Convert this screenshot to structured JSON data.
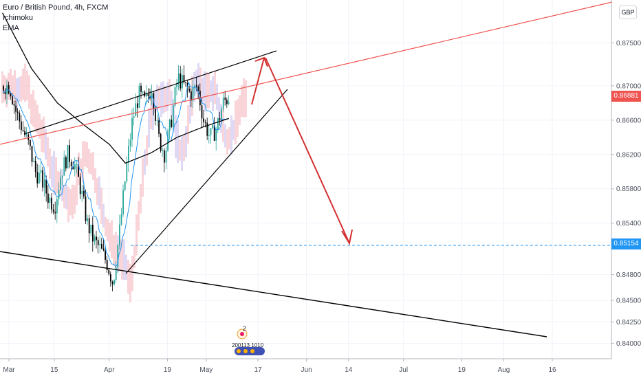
{
  "legend": {
    "symbol": "Euro / British Pound, 4h, FXCM",
    "indicator1": "Ichimoku",
    "indicator2": "EMA"
  },
  "currency_button": "GBP",
  "current_price_tag": {
    "label": "0.86881",
    "color": "#ef5350"
  },
  "target_price_tag": {
    "label": "0.85154",
    "color": "#2196f3"
  },
  "idea_badge": {
    "count": "2",
    "text": "200113 1010"
  },
  "chart_data": {
    "type": "line",
    "title": "Euro / British Pound, 4h, FXCM",
    "ylim": [
      0.8382,
      0.88
    ],
    "y_ticks": [
      "0.87500",
      "0.87000",
      "0.86600",
      "0.86200",
      "0.85800",
      "0.85400",
      "0.84800",
      "0.84500",
      "0.84250",
      "0.84000"
    ],
    "y_tick_values": [
      0.875,
      0.87,
      0.866,
      0.862,
      0.858,
      0.854,
      0.848,
      0.845,
      0.8425,
      0.84
    ],
    "x_ticks": [
      "Mar",
      "15",
      "Apr",
      "19",
      "May",
      "17",
      "Jun",
      "14",
      "Jul",
      "19",
      "Aug",
      "16"
    ],
    "x_tick_dates": [
      "2020-03-01",
      "2020-03-15",
      "2020-04-01",
      "2020-04-19",
      "2020-05-01",
      "2020-05-17",
      "2020-06-01",
      "2020-06-14",
      "2020-07-01",
      "2020-07-19",
      "2020-08-01",
      "2020-08-16"
    ],
    "colors": {
      "up_candle": "#26a69a",
      "down_candle": "#000000",
      "ema": "#000000",
      "tenkan": "#2196f3",
      "kumo_bear": "#f8c9d0",
      "kumo_bull": "#d8d0f2",
      "trendline": "#000000",
      "resistance": "#ef5350",
      "arrow": "#d32f2f",
      "target": "#2196f3"
    },
    "series": [
      {
        "name": "EUR/GBP close",
        "x": [
          "2020-03-01",
          "2020-03-03",
          "2020-03-05",
          "2020-03-07",
          "2020-03-09",
          "2020-03-11",
          "2020-03-13",
          "2020-03-15",
          "2020-03-17",
          "2020-03-19",
          "2020-03-21",
          "2020-03-23",
          "2020-03-25",
          "2020-03-27",
          "2020-03-29",
          "2020-03-31",
          "2020-04-02",
          "2020-04-04",
          "2020-04-06",
          "2020-04-08",
          "2020-04-10",
          "2020-04-12",
          "2020-04-14",
          "2020-04-16",
          "2020-04-18",
          "2020-04-20",
          "2020-04-22",
          "2020-04-24",
          "2020-04-26",
          "2020-04-28",
          "2020-04-30",
          "2020-05-02",
          "2020-05-04",
          "2020-05-06",
          "2020-05-08"
        ],
        "values": [
          0.87,
          0.867,
          0.865,
          0.863,
          0.86,
          0.859,
          0.857,
          0.856,
          0.86,
          0.862,
          0.861,
          0.858,
          0.854,
          0.852,
          0.851,
          0.8495,
          0.847,
          0.853,
          0.86,
          0.866,
          0.869,
          0.868,
          0.87,
          0.864,
          0.862,
          0.866,
          0.871,
          0.87,
          0.869,
          0.87,
          0.866,
          0.864,
          0.865,
          0.868,
          0.8688
        ]
      },
      {
        "name": "EMA",
        "x": [
          "2020-02-28",
          "2020-03-08",
          "2020-03-16",
          "2020-03-24",
          "2020-04-01",
          "2020-04-06",
          "2020-04-14",
          "2020-04-22",
          "2020-04-30",
          "2020-05-08"
        ],
        "values": [
          0.8785,
          0.872,
          0.868,
          0.8655,
          0.8632,
          0.861,
          0.8622,
          0.864,
          0.8652,
          0.8662
        ]
      }
    ]
  }
}
